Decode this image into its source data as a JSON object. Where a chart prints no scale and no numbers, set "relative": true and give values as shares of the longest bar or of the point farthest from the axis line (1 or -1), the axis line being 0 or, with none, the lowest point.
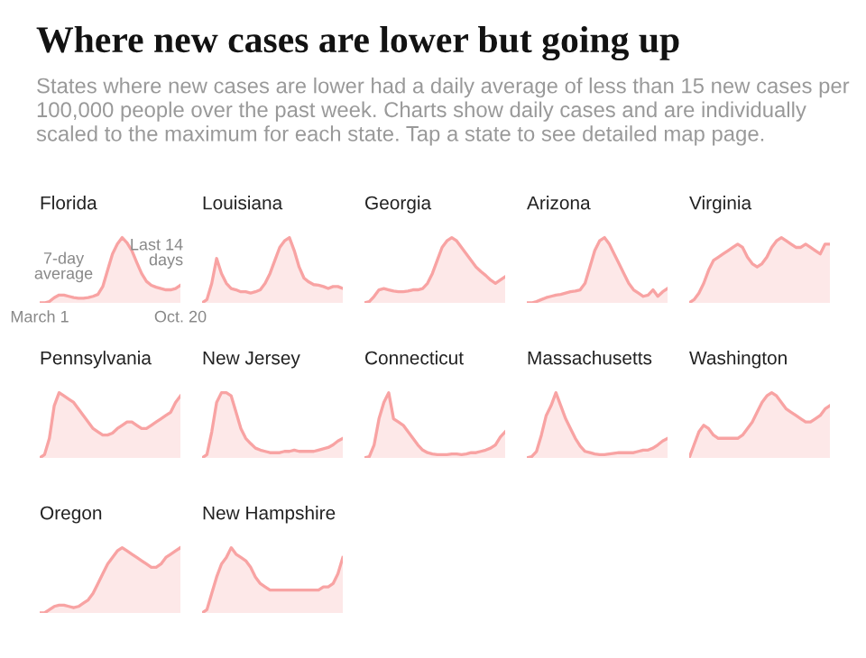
{
  "chart_data": [
    {
      "type": "other",
      "title": "Where new cases are lower but going up",
      "subtitle": "States where new cases are lower had a daily average of less than 15 new cases per 100,000 people over the past week. Charts show daily cases and are individually scaled to the maximum for each state. Tap a state to see detailed map page."
    },
    {
      "type": "area",
      "title": "Florida",
      "relative": true,
      "tick_labels": "x",
      "annotations": [
        "7-day\naverage",
        "Last 14\ndays"
      ],
      "categories": [
        "March 1",
        null,
        null,
        null,
        null,
        null,
        null,
        null,
        null,
        null,
        null,
        null,
        null,
        null,
        null,
        null,
        null,
        null,
        null,
        null,
        null,
        null,
        null,
        null,
        null,
        null,
        null,
        null,
        null,
        "Oct. 20"
      ],
      "series": [
        {
          "color": "#f8a3a3",
          "values": [
            0,
            0,
            0.02,
            0.08,
            0.12,
            0.12,
            0.1,
            0.08,
            0.07,
            0.07,
            0.08,
            0.1,
            0.13,
            0.25,
            0.5,
            0.75,
            0.9,
            1,
            0.92,
            0.8,
            0.62,
            0.45,
            0.33,
            0.27,
            0.24,
            0.22,
            0.2,
            0.2,
            0.22,
            0.27
          ]
        }
      ]
    },
    {
      "type": "area",
      "title": "Louisiana",
      "relative": true,
      "tick_labels": false,
      "categories": [
        null,
        null,
        null,
        null,
        null,
        null,
        null,
        null,
        null,
        null,
        null,
        null,
        null,
        null,
        null,
        null,
        null,
        null,
        null,
        null,
        null,
        null,
        null,
        null,
        null,
        null,
        null,
        null,
        null,
        null
      ],
      "series": [
        {
          "color": "#f8a3a3",
          "values": [
            0,
            0.05,
            0.3,
            0.68,
            0.45,
            0.3,
            0.22,
            0.2,
            0.17,
            0.17,
            0.15,
            0.17,
            0.2,
            0.3,
            0.45,
            0.65,
            0.85,
            0.95,
            1,
            0.8,
            0.55,
            0.38,
            0.32,
            0.28,
            0.27,
            0.25,
            0.22,
            0.25,
            0.25,
            0.22
          ]
        }
      ]
    },
    {
      "type": "area",
      "title": "Georgia",
      "relative": true,
      "tick_labels": false,
      "categories": [
        null,
        null,
        null,
        null,
        null,
        null,
        null,
        null,
        null,
        null,
        null,
        null,
        null,
        null,
        null,
        null,
        null,
        null,
        null,
        null,
        null,
        null,
        null,
        null,
        null,
        null,
        null,
        null,
        null,
        null
      ],
      "series": [
        {
          "color": "#f8a3a3",
          "values": [
            0,
            0.02,
            0.1,
            0.2,
            0.22,
            0.2,
            0.18,
            0.17,
            0.17,
            0.18,
            0.2,
            0.2,
            0.22,
            0.3,
            0.45,
            0.65,
            0.85,
            0.95,
            1,
            0.95,
            0.85,
            0.75,
            0.65,
            0.55,
            0.48,
            0.42,
            0.35,
            0.3,
            0.35,
            0.4
          ]
        }
      ]
    },
    {
      "type": "area",
      "title": "Arizona",
      "relative": true,
      "tick_labels": false,
      "categories": [
        null,
        null,
        null,
        null,
        null,
        null,
        null,
        null,
        null,
        null,
        null,
        null,
        null,
        null,
        null,
        null,
        null,
        null,
        null,
        null,
        null,
        null,
        null,
        null,
        null,
        null,
        null,
        null,
        null,
        null
      ],
      "series": [
        {
          "color": "#f8a3a3",
          "values": [
            0,
            0,
            0.02,
            0.05,
            0.08,
            0.1,
            0.12,
            0.13,
            0.15,
            0.17,
            0.18,
            0.2,
            0.3,
            0.55,
            0.8,
            0.95,
            1,
            0.9,
            0.75,
            0.6,
            0.45,
            0.3,
            0.2,
            0.15,
            0.1,
            0.12,
            0.2,
            0.1,
            0.17,
            0.22
          ]
        }
      ]
    },
    {
      "type": "area",
      "title": "Virginia",
      "relative": true,
      "tick_labels": false,
      "categories": [
        null,
        null,
        null,
        null,
        null,
        null,
        null,
        null,
        null,
        null,
        null,
        null,
        null,
        null,
        null,
        null,
        null,
        null,
        null,
        null,
        null,
        null,
        null,
        null,
        null,
        null,
        null,
        null,
        null,
        null
      ],
      "series": [
        {
          "color": "#f8a3a3",
          "values": [
            0,
            0.05,
            0.15,
            0.3,
            0.5,
            0.65,
            0.7,
            0.75,
            0.8,
            0.85,
            0.9,
            0.85,
            0.7,
            0.6,
            0.55,
            0.6,
            0.7,
            0.85,
            0.95,
            1,
            0.95,
            0.9,
            0.85,
            0.85,
            0.9,
            0.85,
            0.8,
            0.75,
            0.9,
            0.9
          ]
        }
      ]
    },
    {
      "type": "area",
      "title": "Pennsylvania",
      "relative": true,
      "tick_labels": false,
      "categories": [
        null,
        null,
        null,
        null,
        null,
        null,
        null,
        null,
        null,
        null,
        null,
        null,
        null,
        null,
        null,
        null,
        null,
        null,
        null,
        null,
        null,
        null,
        null,
        null,
        null,
        null,
        null,
        null,
        null,
        null
      ],
      "series": [
        {
          "color": "#f8a3a3",
          "values": [
            0,
            0.05,
            0.3,
            0.8,
            1,
            0.95,
            0.9,
            0.85,
            0.75,
            0.65,
            0.55,
            0.45,
            0.4,
            0.35,
            0.35,
            0.38,
            0.45,
            0.5,
            0.55,
            0.55,
            0.5,
            0.45,
            0.45,
            0.5,
            0.55,
            0.6,
            0.65,
            0.7,
            0.85,
            0.95
          ]
        }
      ]
    },
    {
      "type": "area",
      "title": "New Jersey",
      "relative": true,
      "tick_labels": false,
      "categories": [
        null,
        null,
        null,
        null,
        null,
        null,
        null,
        null,
        null,
        null,
        null,
        null,
        null,
        null,
        null,
        null,
        null,
        null,
        null,
        null,
        null,
        null,
        null,
        null,
        null,
        null,
        null,
        null,
        null,
        null
      ],
      "series": [
        {
          "color": "#f8a3a3",
          "values": [
            0,
            0.05,
            0.4,
            0.85,
            1,
            1,
            0.95,
            0.7,
            0.45,
            0.3,
            0.22,
            0.15,
            0.12,
            0.1,
            0.08,
            0.08,
            0.08,
            0.1,
            0.1,
            0.12,
            0.1,
            0.1,
            0.1,
            0.1,
            0.12,
            0.14,
            0.16,
            0.2,
            0.26,
            0.3
          ]
        }
      ]
    },
    {
      "type": "area",
      "title": "Connecticut",
      "relative": true,
      "tick_labels": false,
      "categories": [
        null,
        null,
        null,
        null,
        null,
        null,
        null,
        null,
        null,
        null,
        null,
        null,
        null,
        null,
        null,
        null,
        null,
        null,
        null,
        null,
        null,
        null,
        null,
        null,
        null,
        null,
        null,
        null,
        null,
        null
      ],
      "series": [
        {
          "color": "#f8a3a3",
          "values": [
            0,
            0.02,
            0.2,
            0.6,
            0.85,
            1,
            0.6,
            0.55,
            0.5,
            0.4,
            0.3,
            0.2,
            0.12,
            0.08,
            0.06,
            0.05,
            0.05,
            0.05,
            0.06,
            0.06,
            0.05,
            0.06,
            0.08,
            0.08,
            0.1,
            0.12,
            0.15,
            0.2,
            0.32,
            0.4
          ]
        }
      ]
    },
    {
      "type": "area",
      "title": "Massachusetts",
      "relative": true,
      "tick_labels": false,
      "categories": [
        null,
        null,
        null,
        null,
        null,
        null,
        null,
        null,
        null,
        null,
        null,
        null,
        null,
        null,
        null,
        null,
        null,
        null,
        null,
        null,
        null,
        null,
        null,
        null,
        null,
        null,
        null,
        null,
        null,
        null
      ],
      "series": [
        {
          "color": "#f8a3a3",
          "values": [
            0,
            0.02,
            0.1,
            0.35,
            0.65,
            0.8,
            1,
            0.8,
            0.6,
            0.45,
            0.3,
            0.18,
            0.1,
            0.08,
            0.06,
            0.05,
            0.05,
            0.06,
            0.07,
            0.08,
            0.08,
            0.08,
            0.08,
            0.1,
            0.12,
            0.12,
            0.15,
            0.2,
            0.26,
            0.3
          ]
        }
      ]
    },
    {
      "type": "area",
      "title": "Washington",
      "relative": true,
      "tick_labels": false,
      "categories": [
        null,
        null,
        null,
        null,
        null,
        null,
        null,
        null,
        null,
        null,
        null,
        null,
        null,
        null,
        null,
        null,
        null,
        null,
        null,
        null,
        null,
        null,
        null,
        null,
        null,
        null,
        null,
        null,
        null,
        null
      ],
      "series": [
        {
          "color": "#f8a3a3",
          "values": [
            0,
            0.2,
            0.4,
            0.5,
            0.45,
            0.35,
            0.3,
            0.3,
            0.3,
            0.3,
            0.3,
            0.35,
            0.45,
            0.55,
            0.7,
            0.85,
            0.95,
            1,
            0.95,
            0.85,
            0.75,
            0.7,
            0.65,
            0.6,
            0.55,
            0.55,
            0.6,
            0.65,
            0.75,
            0.8
          ]
        }
      ]
    },
    {
      "type": "area",
      "title": "Oregon",
      "relative": true,
      "tick_labels": false,
      "categories": [
        null,
        null,
        null,
        null,
        null,
        null,
        null,
        null,
        null,
        null,
        null,
        null,
        null,
        null,
        null,
        null,
        null,
        null,
        null,
        null,
        null,
        null,
        null,
        null,
        null,
        null,
        null,
        null,
        null,
        null
      ],
      "series": [
        {
          "color": "#f8a3a3",
          "values": [
            0,
            0,
            0.05,
            0.1,
            0.12,
            0.12,
            0.1,
            0.08,
            0.1,
            0.15,
            0.2,
            0.3,
            0.45,
            0.6,
            0.75,
            0.85,
            0.95,
            1,
            0.95,
            0.9,
            0.85,
            0.8,
            0.75,
            0.7,
            0.7,
            0.75,
            0.85,
            0.9,
            0.95,
            1
          ]
        }
      ]
    },
    {
      "type": "area",
      "title": "New Hampshire",
      "relative": true,
      "tick_labels": false,
      "categories": [
        null,
        null,
        null,
        null,
        null,
        null,
        null,
        null,
        null,
        null,
        null,
        null,
        null,
        null,
        null,
        null,
        null,
        null,
        null,
        null,
        null,
        null,
        null,
        null,
        null,
        null,
        null,
        null,
        null,
        null
      ],
      "series": [
        {
          "color": "#f8a3a3",
          "values": [
            0,
            0.05,
            0.3,
            0.55,
            0.75,
            0.85,
            1,
            0.9,
            0.85,
            0.8,
            0.7,
            0.55,
            0.45,
            0.4,
            0.35,
            0.35,
            0.35,
            0.35,
            0.35,
            0.35,
            0.35,
            0.35,
            0.35,
            0.35,
            0.35,
            0.4,
            0.4,
            0.45,
            0.6,
            0.85
          ]
        }
      ]
    }
  ]
}
